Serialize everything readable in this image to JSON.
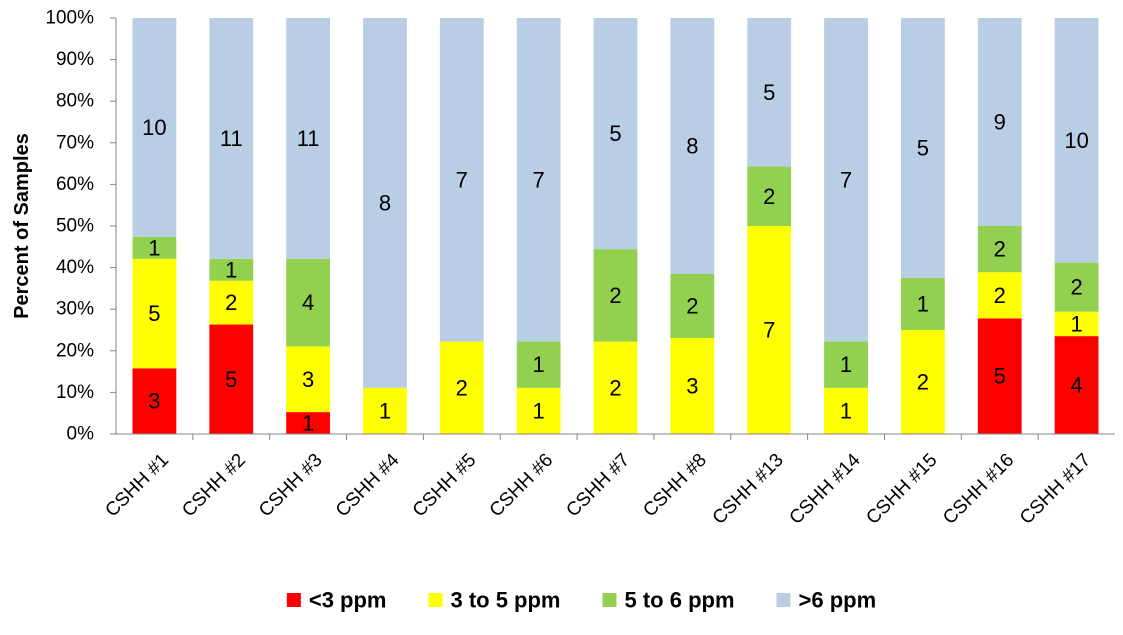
{
  "chart_data": {
    "type": "bar",
    "stacked": true,
    "normalized": true,
    "title": "",
    "xlabel": "",
    "ylabel": "Percent of Samples",
    "ylim": [
      0,
      100
    ],
    "ytick_values": [
      0,
      10,
      20,
      30,
      40,
      50,
      60,
      70,
      80,
      90,
      100
    ],
    "yticks": [
      "0%",
      "10%",
      "20%",
      "30%",
      "40%",
      "50%",
      "60%",
      "70%",
      "80%",
      "90%",
      "100%"
    ],
    "grid": false,
    "legend_position": "bottom",
    "categories": [
      "CSHH #1",
      "CSHH #2",
      "CSHH #3",
      "CSHH #4",
      "CSHH #5",
      "CSHH #6",
      "CSHH #7",
      "CSHH #8",
      "CSHH #13",
      "CSHH #14",
      "CSHH #15",
      "CSHH #16",
      "CSHH #17"
    ],
    "series": [
      {
        "name": "<3 ppm",
        "color": "#ff0000",
        "values": [
          3,
          5,
          1,
          0,
          0,
          0,
          0,
          0,
          0,
          0,
          0,
          5,
          4
        ]
      },
      {
        "name": "3 to 5 ppm",
        "color": "#ffff00",
        "values": [
          5,
          2,
          3,
          1,
          2,
          1,
          2,
          3,
          7,
          1,
          2,
          2,
          1
        ]
      },
      {
        "name": "5 to 6 ppm",
        "color": "#92d050",
        "values": [
          1,
          1,
          4,
          0,
          0,
          1,
          2,
          2,
          2,
          1,
          1,
          2,
          2
        ]
      },
      {
        "name": ">6 ppm",
        "color": "#b9cde5",
        "values": [
          10,
          11,
          11,
          8,
          7,
          7,
          5,
          8,
          5,
          7,
          5,
          9,
          10
        ]
      }
    ]
  }
}
